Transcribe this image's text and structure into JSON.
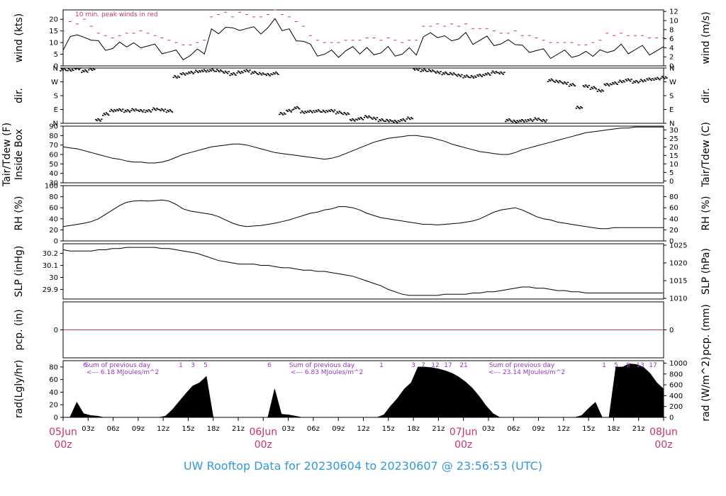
{
  "footer": {
    "title": "UW Rooftop Data for 20230604  to  20230607 @ 23:56:53  (UTC)"
  },
  "colors": {
    "frame": "#000000",
    "accent": "#cc3366",
    "purple": "#9933cc",
    "title": "#3399dd",
    "series": "#000000"
  },
  "chart_data": [
    {
      "type": "line",
      "id": "wind",
      "ylabel": "wind (kts)",
      "ylabel_right": "wind (m/s)",
      "ylim": [
        0,
        24
      ],
      "yticks": [
        0,
        5,
        10,
        15,
        20
      ],
      "yticks_right": [
        0,
        2,
        4,
        6,
        8,
        10,
        12
      ],
      "annotation": "10 min. peak winds in red",
      "series": [
        {
          "values": [
            9,
            13,
            12,
            14,
            11,
            9,
            8,
            7,
            8,
            9,
            9,
            10,
            9,
            8,
            7,
            6,
            5,
            4,
            4,
            5,
            6,
            15,
            16,
            17,
            15,
            17,
            16,
            15,
            15,
            16,
            18,
            16,
            15,
            13,
            11,
            8,
            6,
            5,
            5,
            5,
            6,
            6,
            6,
            7,
            7,
            6,
            7,
            6,
            5,
            6,
            6,
            12,
            12,
            13,
            12,
            13,
            12,
            13,
            11,
            11,
            11,
            10,
            9,
            9,
            10,
            8,
            8,
            7,
            6,
            5,
            5,
            5,
            5,
            4,
            4,
            5,
            6,
            8,
            7,
            8,
            7,
            7,
            7,
            6,
            6,
            6
          ]
        },
        {
          "values": [
            15,
            19,
            18,
            20,
            17,
            14,
            13,
            12,
            13,
            14,
            14,
            15,
            14,
            13,
            12,
            11,
            10,
            9,
            9,
            10,
            11,
            21,
            22,
            23,
            21,
            23,
            22,
            21,
            21,
            22,
            24,
            22,
            21,
            19,
            17,
            13,
            11,
            10,
            10,
            10,
            11,
            11,
            11,
            12,
            12,
            11,
            12,
            11,
            10,
            11,
            11,
            17,
            17,
            18,
            17,
            18,
            17,
            18,
            16,
            16,
            16,
            15,
            14,
            14,
            15,
            13,
            13,
            12,
            11,
            10,
            10,
            10,
            10,
            9,
            9,
            10,
            11,
            14,
            13,
            14,
            13,
            13,
            13,
            12,
            12,
            12
          ]
        }
      ]
    },
    {
      "type": "scatter",
      "id": "dir",
      "ylabel": "dir.",
      "ylabel_right": "dir.",
      "ylim": [
        0,
        360
      ],
      "ytick_labels": [
        "N",
        "E",
        "S",
        "W",
        "N"
      ],
      "series": [
        {
          "values": [
            350,
            345,
            355,
            340,
            350,
            20,
            60,
            80,
            85,
            80,
            85,
            80,
            80,
            90,
            85,
            80,
            300,
            320,
            330,
            335,
            340,
            345,
            340,
            330,
            320,
            330,
            340,
            330,
            320,
            315,
            325,
            60,
            80,
            100,
            70,
            75,
            80,
            75,
            80,
            70,
            60,
            20,
            30,
            40,
            30,
            20,
            15,
            10,
            20,
            30,
            350,
            345,
            340,
            330,
            325,
            320,
            310,
            305,
            300,
            310,
            320,
            330,
            325,
            20,
            10,
            15,
            20,
            25,
            15,
            280,
            270,
            260,
            250,
            100,
            240,
            230,
            210,
            250,
            260,
            270,
            280,
            270,
            275,
            285,
            290,
            295
          ]
        }
      ]
    },
    {
      "type": "line",
      "id": "tair",
      "ylabel": "Tair/Tdew (F)",
      "ylabel2": "Inside Box",
      "ylabel_right": "Tair/Tdew (C)",
      "ylim": [
        30,
        90
      ],
      "yticks": [
        30,
        40,
        50,
        60,
        70,
        80,
        90
      ],
      "yticks_right": [
        0,
        5,
        10,
        15,
        20,
        25,
        30
      ],
      "series": [
        {
          "values": [
            68,
            67,
            66,
            64,
            62,
            60,
            58,
            56,
            55,
            53,
            52,
            52,
            51,
            51,
            52,
            54,
            57,
            60,
            62,
            64,
            66,
            68,
            69,
            70,
            71,
            71,
            70,
            68,
            66,
            64,
            62,
            61,
            60,
            59,
            58,
            57,
            56,
            55,
            56,
            58,
            61,
            64,
            67,
            70,
            73,
            75,
            77,
            78,
            79,
            80,
            80,
            79,
            78,
            76,
            74,
            71,
            69,
            67,
            65,
            63,
            62,
            61,
            60,
            60,
            62,
            65,
            67,
            69,
            71,
            73,
            75,
            77,
            79,
            81,
            83,
            84,
            85,
            86,
            87,
            88,
            88,
            89,
            89,
            89,
            89,
            89
          ]
        }
      ]
    },
    {
      "type": "line",
      "id": "rh",
      "ylabel": "RH (%)",
      "ylabel_right": "RH (%)",
      "ylim": [
        0,
        100
      ],
      "yticks": [
        0,
        20,
        40,
        60,
        80,
        100
      ],
      "yticks_right": [
        0,
        20,
        40,
        60,
        80
      ],
      "series": [
        {
          "values": [
            26,
            28,
            30,
            32,
            35,
            40,
            48,
            56,
            64,
            70,
            72,
            73,
            72,
            73,
            74,
            72,
            66,
            58,
            54,
            52,
            50,
            48,
            44,
            38,
            32,
            28,
            26,
            27,
            28,
            30,
            32,
            35,
            38,
            42,
            46,
            50,
            52,
            56,
            58,
            62,
            62,
            60,
            56,
            50,
            46,
            42,
            40,
            38,
            36,
            34,
            32,
            30,
            30,
            29,
            30,
            31,
            32,
            34,
            36,
            40,
            46,
            52,
            56,
            58,
            60,
            56,
            50,
            44,
            40,
            38,
            34,
            32,
            30,
            28,
            26,
            24,
            22,
            22,
            24,
            24,
            24,
            24,
            24,
            24,
            24,
            24
          ]
        }
      ]
    },
    {
      "type": "line",
      "id": "slp",
      "ylabel": "SLP (inHg)",
      "ylabel_right": "SLP (hPa)",
      "ylim": [
        29.82,
        30.28
      ],
      "yticks": [
        29.9,
        30.0,
        30.1,
        30.2
      ],
      "yticks_right": [
        1010,
        1015,
        1020,
        1025
      ],
      "series": [
        {
          "values": [
            30.23,
            30.22,
            30.22,
            30.22,
            30.22,
            30.23,
            30.23,
            30.24,
            30.24,
            30.25,
            30.25,
            30.25,
            30.25,
            30.25,
            30.24,
            30.24,
            30.23,
            30.22,
            30.21,
            30.2,
            30.18,
            30.16,
            30.14,
            30.13,
            30.12,
            30.11,
            30.11,
            30.11,
            30.1,
            30.1,
            30.09,
            30.08,
            30.08,
            30.07,
            30.06,
            30.06,
            30.05,
            30.05,
            30.04,
            30.03,
            30.02,
            30.01,
            29.99,
            29.97,
            29.95,
            29.93,
            29.9,
            29.88,
            29.86,
            29.85,
            29.85,
            29.85,
            29.85,
            29.85,
            29.86,
            29.86,
            29.86,
            29.86,
            29.87,
            29.87,
            29.88,
            29.88,
            29.89,
            29.9,
            29.91,
            29.92,
            29.92,
            29.91,
            29.91,
            29.9,
            29.89,
            29.89,
            29.88,
            29.88,
            29.87,
            29.87,
            29.87,
            29.87,
            29.87,
            29.87,
            29.87,
            29.87,
            29.87,
            29.87,
            29.87,
            29.87
          ]
        }
      ]
    },
    {
      "type": "line",
      "id": "pcp",
      "ylabel": "pcp. (in)",
      "ylabel_right": "pcp. (mm)",
      "ylim": [
        -1,
        1
      ],
      "yticks": [
        0
      ],
      "yticks_right": [
        0
      ],
      "series": [
        {
          "values": [
            0,
            0
          ]
        }
      ]
    },
    {
      "type": "area",
      "id": "rad",
      "ylabel": "rad(Lgly/hr)",
      "ylabel_right": "rad (W/m^2)",
      "ylim": [
        0,
        90
      ],
      "yticks": [
        0,
        20,
        40,
        60,
        80
      ],
      "yticks_right": [
        0,
        200,
        400,
        600,
        800,
        1000
      ],
      "top_labels": [
        "6",
        "1",
        "3",
        "5",
        "6",
        "1",
        "3",
        "7",
        "12",
        "17",
        "21",
        "1",
        "5",
        "9",
        "13",
        "17"
      ],
      "sums": [
        {
          "line1": "Sum of previous day",
          "line2": "<--- 6.18 MJoules/m^2"
        },
        {
          "line1": "Sum of previous day",
          "line2": "<--- 6.83 MJoules/m^2"
        },
        {
          "line1": "Sum of previous day",
          "line2": "<--- 23.14 MJoules/m^2"
        }
      ],
      "series": [
        {
          "values": [
            0,
            0,
            24,
            6,
            3,
            2,
            0,
            0,
            0,
            0,
            0,
            0,
            0,
            0,
            0,
            2,
            12,
            25,
            38,
            50,
            55,
            65,
            0,
            0,
            0,
            0,
            0,
            0,
            0,
            0,
            0,
            45,
            5,
            4,
            2,
            0,
            0,
            0,
            0,
            0,
            0,
            0,
            0,
            0,
            0,
            0,
            0,
            4,
            18,
            30,
            45,
            55,
            80,
            80,
            79,
            77,
            74,
            70,
            64,
            56,
            46,
            33,
            18,
            6,
            0,
            0,
            0,
            0,
            0,
            0,
            0,
            0,
            0,
            0,
            0,
            0,
            3,
            14,
            24,
            0,
            0,
            80,
            80,
            85,
            84,
            80,
            70,
            55,
            45
          ]
        }
      ]
    }
  ],
  "x_axis": {
    "hour_ticks": [
      "03z",
      "06z",
      "09z",
      "12z",
      "15z",
      "18z",
      "21z",
      "03z",
      "06z",
      "09z",
      "12z",
      "15z",
      "18z",
      "21z",
      "03z",
      "06z",
      "09z",
      "12z",
      "15z",
      "18z",
      "21z"
    ],
    "day_labels": [
      {
        "date": "05Jun",
        "hour": "00z"
      },
      {
        "date": "06Jun",
        "hour": "00z"
      },
      {
        "date": "07Jun",
        "hour": "00z"
      },
      {
        "date": "08Jun",
        "hour": "00z"
      }
    ]
  }
}
